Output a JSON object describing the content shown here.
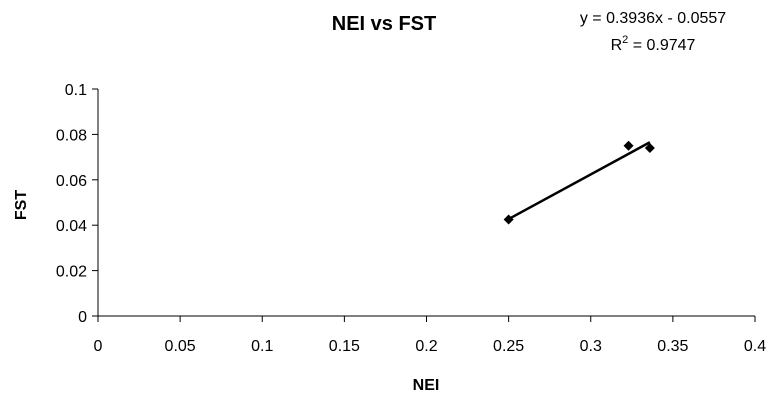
{
  "chart_data": {
    "type": "scatter",
    "title": "NEI vs FST",
    "xlabel": "NEI",
    "ylabel": "FST",
    "xlim": [
      0,
      0.4
    ],
    "ylim": [
      0,
      0.1
    ],
    "xticks": [
      "0",
      "0.05",
      "0.1",
      "0.15",
      "0.2",
      "0.25",
      "0.3",
      "0.35",
      "0.4"
    ],
    "yticks": [
      "0",
      "0.02",
      "0.04",
      "0.06",
      "0.08",
      "0.1"
    ],
    "grid": false,
    "legend": "none",
    "points": [
      {
        "x": 0.25,
        "y": 0.0425
      },
      {
        "x": 0.323,
        "y": 0.075
      },
      {
        "x": 0.336,
        "y": 0.074
      }
    ],
    "trendline": {
      "type": "linear",
      "slope": 0.3936,
      "intercept": -0.0557,
      "x_start": 0.25,
      "x_end": 0.336
    },
    "equation_label": "y = 0.3936x - 0.0557",
    "r2_label_prefix": "R",
    "r2_label_sup": "2",
    "r2_label_value": " = 0.9747",
    "marker_color": "#000000",
    "line_color": "#000000"
  }
}
